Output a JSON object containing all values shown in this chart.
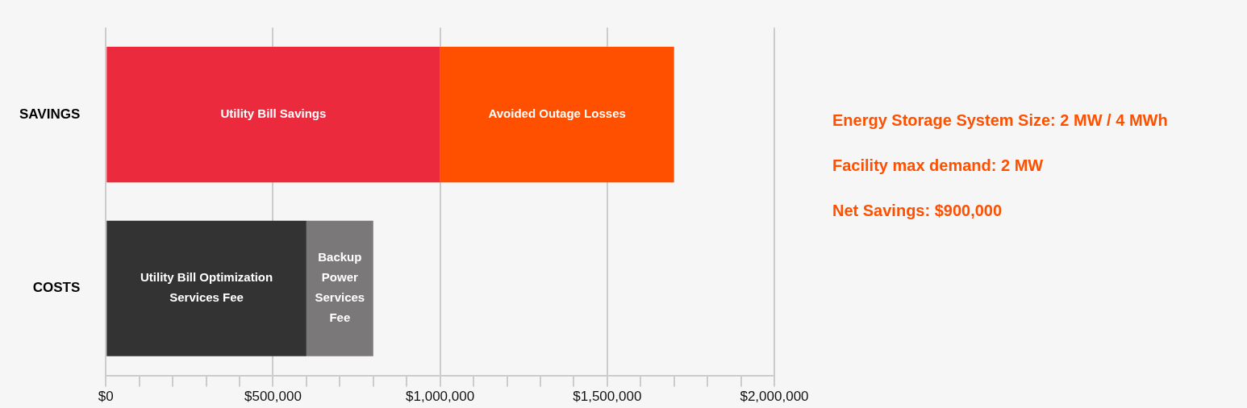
{
  "chart_data": {
    "type": "bar",
    "orientation": "horizontal",
    "stacked": true,
    "categories": [
      "SAVINGS",
      "COSTS"
    ],
    "series": [
      {
        "name": "Utility Bill Savings",
        "color": "#ec2a3d",
        "values": [
          1000000,
          null
        ]
      },
      {
        "name": "Avoided Outage Losses",
        "color": "#ff5000",
        "values": [
          700000,
          null
        ]
      },
      {
        "name": "Utility Bill Optimization Services Fee",
        "color": "#333333",
        "values": [
          null,
          600000
        ]
      },
      {
        "name": "Backup Power Services Fee",
        "color": "#7a7878",
        "values": [
          null,
          200000
        ]
      }
    ],
    "xlim": [
      0,
      2000000
    ],
    "xticks": [
      {
        "value": 0,
        "label": "$0"
      },
      {
        "value": 100000,
        "label": null
      },
      {
        "value": 200000,
        "label": null
      },
      {
        "value": 300000,
        "label": null
      },
      {
        "value": 400000,
        "label": null
      },
      {
        "value": 500000,
        "label": "$500,000"
      },
      {
        "value": 600000,
        "label": null
      },
      {
        "value": 700000,
        "label": null
      },
      {
        "value": 800000,
        "label": null
      },
      {
        "value": 900000,
        "label": null
      },
      {
        "value": 1000000,
        "label": "$1,000,000"
      },
      {
        "value": 1100000,
        "label": null
      },
      {
        "value": 1200000,
        "label": null
      },
      {
        "value": 1300000,
        "label": null
      },
      {
        "value": 1400000,
        "label": null
      },
      {
        "value": 1500000,
        "label": "$1,500,000"
      },
      {
        "value": 1600000,
        "label": null
      },
      {
        "value": 1700000,
        "label": null
      },
      {
        "value": 1800000,
        "label": null
      },
      {
        "value": 1900000,
        "label": null
      },
      {
        "value": 2000000,
        "label": "$2,000,000"
      }
    ],
    "grid": "x",
    "legend": false,
    "annotations": [
      "Energy Storage System Size: 2 MW / 4 MWh",
      "Facility max demand: 2 MW",
      "Net Savings: $900,000"
    ]
  }
}
